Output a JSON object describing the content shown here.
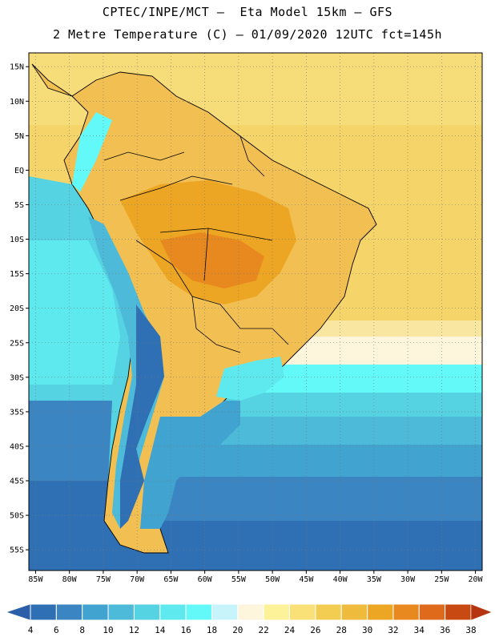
{
  "header": {
    "line1": "CPTEC/INPE/MCT –  Eta Model 15km – GFS",
    "line2": "2 Metre Temperature (C) – 01/09/2020 12UTC fct=145h"
  },
  "map": {
    "region": "South America",
    "lon_range": [
      -86,
      -19
    ],
    "lat_range": [
      -58,
      17
    ],
    "lat_ticks": [
      {
        "v": 15,
        "label": "15N"
      },
      {
        "v": 10,
        "label": "10N"
      },
      {
        "v": 5,
        "label": "5N"
      },
      {
        "v": 0,
        "label": "EQ"
      },
      {
        "v": -5,
        "label": "5S"
      },
      {
        "v": -10,
        "label": "10S"
      },
      {
        "v": -15,
        "label": "15S"
      },
      {
        "v": -20,
        "label": "20S"
      },
      {
        "v": -25,
        "label": "25S"
      },
      {
        "v": -30,
        "label": "30S"
      },
      {
        "v": -35,
        "label": "35S"
      },
      {
        "v": -40,
        "label": "40S"
      },
      {
        "v": -45,
        "label": "45S"
      },
      {
        "v": -50,
        "label": "50S"
      },
      {
        "v": -55,
        "label": "55S"
      }
    ],
    "lon_ticks": [
      {
        "v": -85,
        "label": "85W"
      },
      {
        "v": -80,
        "label": "80W"
      },
      {
        "v": -75,
        "label": "75W"
      },
      {
        "v": -70,
        "label": "70W"
      },
      {
        "v": -65,
        "label": "65W"
      },
      {
        "v": -60,
        "label": "60W"
      },
      {
        "v": -55,
        "label": "55W"
      },
      {
        "v": -50,
        "label": "50W"
      },
      {
        "v": -45,
        "label": "45W"
      },
      {
        "v": -40,
        "label": "40W"
      },
      {
        "v": -35,
        "label": "35W"
      },
      {
        "v": -30,
        "label": "30W"
      },
      {
        "v": -25,
        "label": "25W"
      },
      {
        "v": -20,
        "label": "20W"
      }
    ]
  },
  "legend": {
    "labels": [
      "4",
      "6",
      "8",
      "10",
      "12",
      "14",
      "16",
      "18",
      "20",
      "22",
      "24",
      "26",
      "28",
      "30",
      "32",
      "34",
      "36",
      "38"
    ],
    "colors": [
      "#2b5fa8",
      "#2f6fb4",
      "#3a85c2",
      "#41a3cf",
      "#4cbad8",
      "#55d3e3",
      "#5ee9ef",
      "#64f9f9",
      "#c7f3fb",
      "#fdf6dd",
      "#fdf19a",
      "#f9e077",
      "#f3cc52",
      "#eebb3d",
      "#eda624",
      "#e8891f",
      "#e06a1b",
      "#c84912",
      "#b4350f"
    ]
  }
}
